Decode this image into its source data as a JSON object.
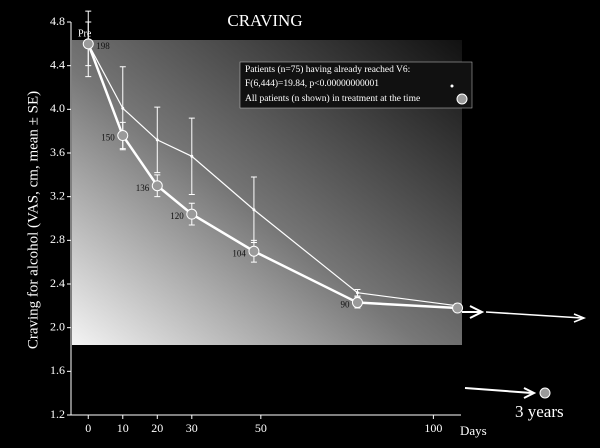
{
  "chart_data": {
    "type": "line",
    "title": "CRAVING",
    "ylabel": "Craving for alcohol (VAS, cm, mean ± SE)",
    "xlabel": "Days",
    "xlim": [
      -5,
      108
    ],
    "ylim": [
      1.2,
      4.8
    ],
    "xticks": [
      0,
      10,
      20,
      30,
      50,
      100
    ],
    "yticks": [
      1.2,
      1.6,
      {
        "value": 2,
        "label": "2.0"
      },
      2.4,
      2.8,
      3.2,
      3.6,
      {
        "value": 4,
        "label": "4.0"
      },
      4.4,
      4.8
    ],
    "start_label": "Pre",
    "annotation": "F(6,444)=19.84, p<0.00000000001",
    "end_label": "3 years",
    "series": [
      {
        "name": "All patients (n shown) in treatment at the time",
        "color": "#9a9a9a",
        "x": [
          0,
          10,
          20,
          30,
          48,
          78,
          107
        ],
        "values": [
          4.6,
          3.76,
          3.3,
          3.04,
          2.7,
          2.23,
          2.18
        ],
        "errors": [
          0.3,
          0.12,
          0.1,
          0.1,
          0.1,
          0.05,
          0.03
        ],
        "point_labels": [
          "198",
          "150",
          "136",
          "120",
          "104",
          "90",
          null
        ]
      },
      {
        "name": "Patients (n=75) having already reached V6:",
        "color": "#ffffff",
        "x": [
          0,
          10,
          20,
          30,
          48,
          78,
          107
        ],
        "values": [
          4.6,
          4.01,
          3.72,
          3.57,
          3.08,
          2.32,
          2.2
        ],
        "errors": [
          0.2,
          0.38,
          0.3,
          0.35,
          0.3,
          0.03,
          0.02
        ]
      }
    ]
  }
}
